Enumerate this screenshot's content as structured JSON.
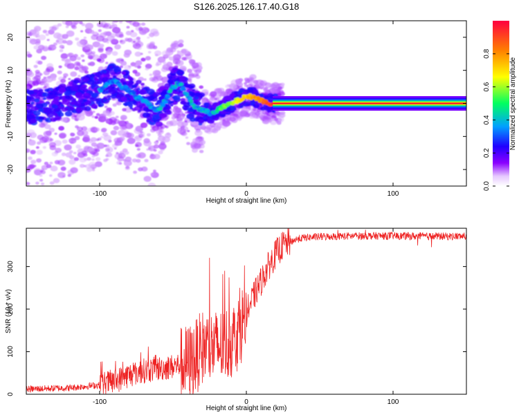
{
  "figure_title": "S126.2025.126.17.40.G18",
  "chart_data": [
    {
      "type": "heatmap",
      "title": "S126.2025.126.17.40.G18",
      "xlabel": "Height of straight line (km)",
      "ylabel": "Frequency (Hz)",
      "xlim": [
        -150,
        150
      ],
      "ylim": [
        -25,
        25
      ],
      "x_ticks": [
        -100,
        0,
        100
      ],
      "x_tick_labels": [
        "-100",
        "0",
        "100"
      ],
      "y_ticks": [
        20,
        10,
        0,
        -10,
        -20
      ],
      "y_tick_labels": [
        "20",
        "10",
        "0",
        "-10",
        "-20"
      ],
      "colorbar": {
        "label": "Normalized spectral amplitude",
        "range": [
          0,
          1
        ],
        "ticks": [
          0.0,
          0.2,
          0.4,
          0.6,
          0.8
        ],
        "tick_labels": [
          "0.0",
          "0.2",
          "0.4",
          "0.6",
          "0.8"
        ],
        "colormap": [
          "#ffffff",
          "#8a00ff",
          "#2000ff",
          "#00a0ff",
          "#00ff60",
          "#ffff00",
          "#ff8000",
          "#ff0040"
        ]
      },
      "ridge": {
        "x": [
          -150,
          -140,
          -130,
          -120,
          -110,
          -100,
          -95,
          -90,
          -85,
          -80,
          -75,
          -70,
          -65,
          -60,
          -55,
          -50,
          -45,
          -40,
          -35,
          -30,
          -25,
          -20,
          -15,
          -10,
          -5,
          0,
          5,
          10,
          15,
          20,
          150
        ],
        "y": [
          -1,
          -1,
          0,
          2,
          3,
          4,
          6,
          7,
          5,
          4,
          2,
          1,
          -1,
          -2,
          1,
          5,
          6,
          2,
          -1,
          -2,
          -3,
          -2,
          -1,
          0,
          1,
          2,
          2,
          1,
          0,
          0,
          0
        ]
      }
    },
    {
      "type": "line",
      "title": "",
      "xlabel": "Height of straight line (km)",
      "ylabel": "SNR (10 * v/v)",
      "xlim": [
        -150,
        150
      ],
      "ylim": [
        0,
        390
      ],
      "x_ticks": [
        -100,
        0,
        100
      ],
      "x_tick_labels": [
        "-100",
        "0",
        "100"
      ],
      "y_ticks": [
        0,
        100,
        200,
        300
      ],
      "y_tick_labels": [
        "0",
        "100",
        "200",
        "300"
      ],
      "color": "#ee2222",
      "envelope": {
        "x": [
          -150,
          -120,
          -100,
          -90,
          -80,
          -70,
          -60,
          -50,
          -45,
          -40,
          -35,
          -30,
          -25,
          -20,
          -15,
          -10,
          -5,
          0,
          5,
          10,
          15,
          20,
          25,
          30,
          35,
          40,
          50,
          60,
          80,
          100,
          120,
          150
        ],
        "y": [
          12,
          15,
          22,
          30,
          45,
          55,
          60,
          65,
          70,
          75,
          85,
          110,
          110,
          110,
          115,
          125,
          150,
          190,
          230,
          265,
          300,
          330,
          350,
          358,
          365,
          368,
          370,
          371,
          372,
          372,
          371,
          371
        ]
      }
    }
  ]
}
